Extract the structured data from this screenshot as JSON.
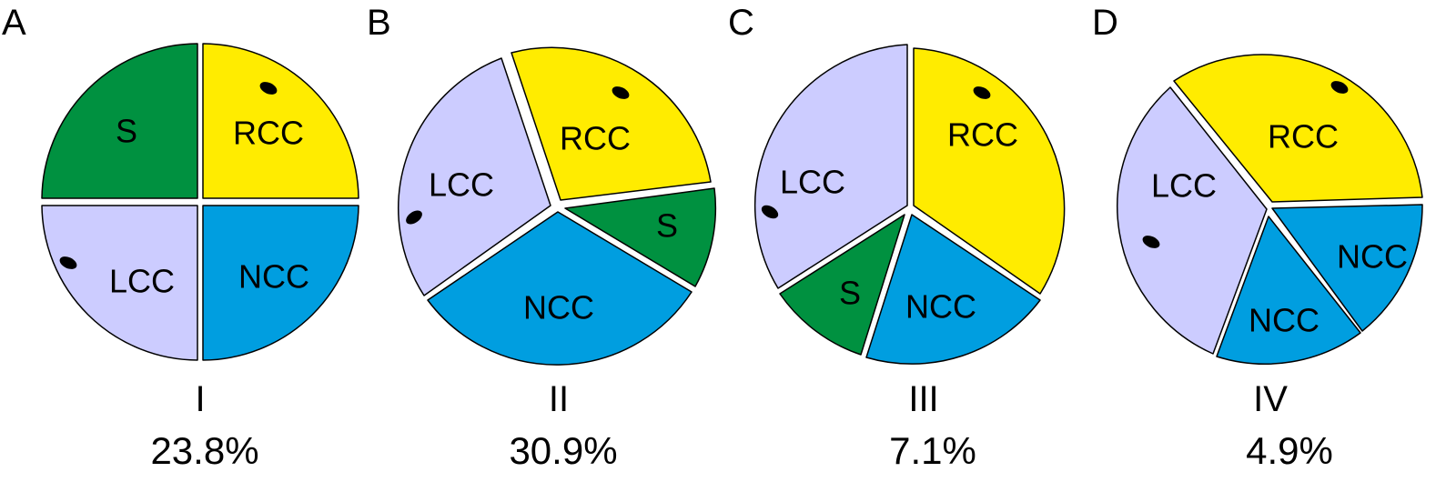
{
  "colors": {
    "S": "#009140",
    "RCC": "#FFEC00",
    "LCC": "#CCCCFF",
    "NCC": "#009EE0",
    "ostium": "#000000",
    "outline": "#000000"
  },
  "panels": [
    {
      "letter": "A",
      "type": "I",
      "percent": "23.8%",
      "segments": [
        {
          "label": "S",
          "color_key": "S"
        },
        {
          "label": "RCC",
          "color_key": "RCC"
        },
        {
          "label": "LCC",
          "color_key": "LCC"
        },
        {
          "label": "NCC",
          "color_key": "NCC"
        }
      ]
    },
    {
      "letter": "B",
      "type": "II",
      "percent": "30.9%",
      "segments": [
        {
          "label": "LCC",
          "color_key": "LCC"
        },
        {
          "label": "RCC",
          "color_key": "RCC"
        },
        {
          "label": "S",
          "color_key": "S"
        },
        {
          "label": "NCC",
          "color_key": "NCC"
        }
      ]
    },
    {
      "letter": "C",
      "type": "III",
      "percent": "7.1%",
      "segments": [
        {
          "label": "LCC",
          "color_key": "LCC"
        },
        {
          "label": "RCC",
          "color_key": "RCC"
        },
        {
          "label": "S",
          "color_key": "S"
        },
        {
          "label": "NCC",
          "color_key": "NCC"
        }
      ]
    },
    {
      "letter": "D",
      "type": "IV",
      "percent": "4.9%",
      "segments": [
        {
          "label": "RCC",
          "color_key": "RCC"
        },
        {
          "label": "LCC",
          "color_key": "LCC"
        },
        {
          "label": "NCC",
          "color_key": "NCC"
        },
        {
          "label": "NCC",
          "color_key": "NCC"
        }
      ]
    }
  ]
}
